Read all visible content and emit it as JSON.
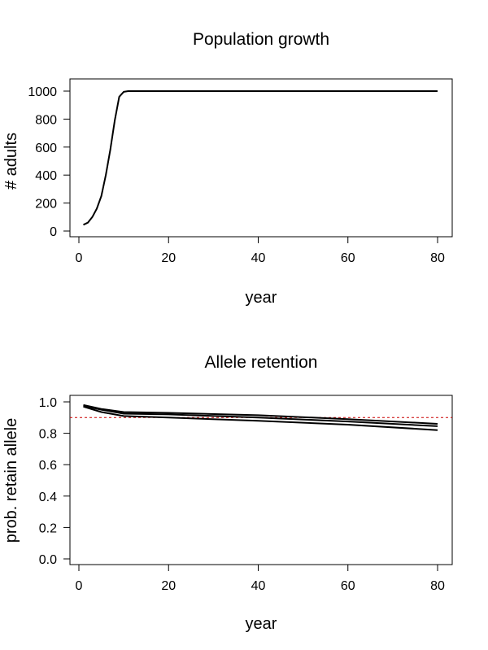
{
  "chart_data": [
    {
      "type": "line",
      "title": "Population growth",
      "xlabel": "year",
      "ylabel": "# adults",
      "xlim": [
        0,
        80
      ],
      "ylim": [
        0,
        1000
      ],
      "xticks": [
        0,
        20,
        40,
        60,
        80
      ],
      "yticks": [
        0,
        200,
        400,
        600,
        800,
        1000
      ],
      "grid": false,
      "series": [
        {
          "x": [
            1,
            2,
            3,
            4,
            5,
            6,
            7,
            8,
            9,
            10,
            11,
            20,
            40,
            60,
            80
          ],
          "y": [
            45,
            60,
            100,
            160,
            250,
            400,
            580,
            790,
            960,
            995,
            1000,
            1000,
            1000,
            1000,
            1000
          ],
          "color": "#000000"
        }
      ]
    },
    {
      "type": "line",
      "title": "Allele retention",
      "xlabel": "year",
      "ylabel": "prob. retain allele",
      "xlim": [
        0,
        80
      ],
      "ylim": [
        0,
        1
      ],
      "xticks": [
        0,
        20,
        40,
        60,
        80
      ],
      "yticks": [
        "0.0",
        "0.2",
        "0.4",
        "0.6",
        "0.8",
        "1.0"
      ],
      "grid": false,
      "series": [
        {
          "x": [
            1,
            5,
            10,
            20,
            40,
            60,
            80
          ],
          "y": [
            0.98,
            0.955,
            0.935,
            0.93,
            0.915,
            0.89,
            0.86
          ],
          "color": "#000000"
        },
        {
          "x": [
            1,
            5,
            10,
            20,
            40,
            60,
            80
          ],
          "y": [
            0.975,
            0.95,
            0.925,
            0.92,
            0.9,
            0.875,
            0.845
          ],
          "color": "#000000"
        },
        {
          "x": [
            1,
            5,
            10,
            20,
            40,
            60,
            80
          ],
          "y": [
            0.97,
            0.935,
            0.91,
            0.9,
            0.88,
            0.855,
            0.82
          ],
          "color": "#000000"
        }
      ],
      "reference_line": {
        "y": 0.9,
        "color": "#cc0000",
        "style": "dashed"
      }
    }
  ]
}
